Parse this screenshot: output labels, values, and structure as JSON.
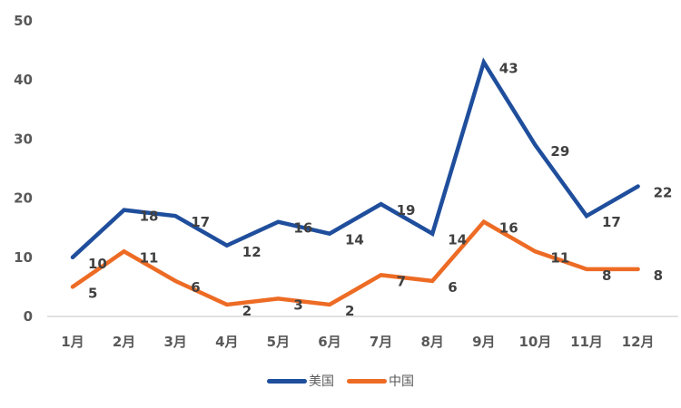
{
  "chart_data": {
    "type": "line",
    "title": "",
    "xlabel": "",
    "ylabel": "",
    "categories": [
      "1月",
      "2月",
      "3月",
      "4月",
      "5月",
      "6月",
      "7月",
      "8月",
      "9月",
      "10月",
      "11月",
      "12月"
    ],
    "series": [
      {
        "name": "美国",
        "color": "#1F4E9C",
        "values": [
          10,
          18,
          17,
          12,
          16,
          14,
          19,
          14,
          43,
          29,
          17,
          22
        ]
      },
      {
        "name": "中国",
        "color": "#ED6B24",
        "values": [
          5,
          11,
          6,
          2,
          3,
          2,
          7,
          6,
          16,
          11,
          8,
          8
        ]
      }
    ],
    "ylim": [
      0,
      50
    ],
    "yticks": [
      0,
      10,
      20,
      30,
      40,
      50
    ],
    "grid": false,
    "data_labels": true,
    "legend_position": "bottom"
  },
  "legend": {
    "items": [
      {
        "label": "美国",
        "color": "#1F4E9C"
      },
      {
        "label": "中国",
        "color": "#ED6B24"
      }
    ]
  }
}
